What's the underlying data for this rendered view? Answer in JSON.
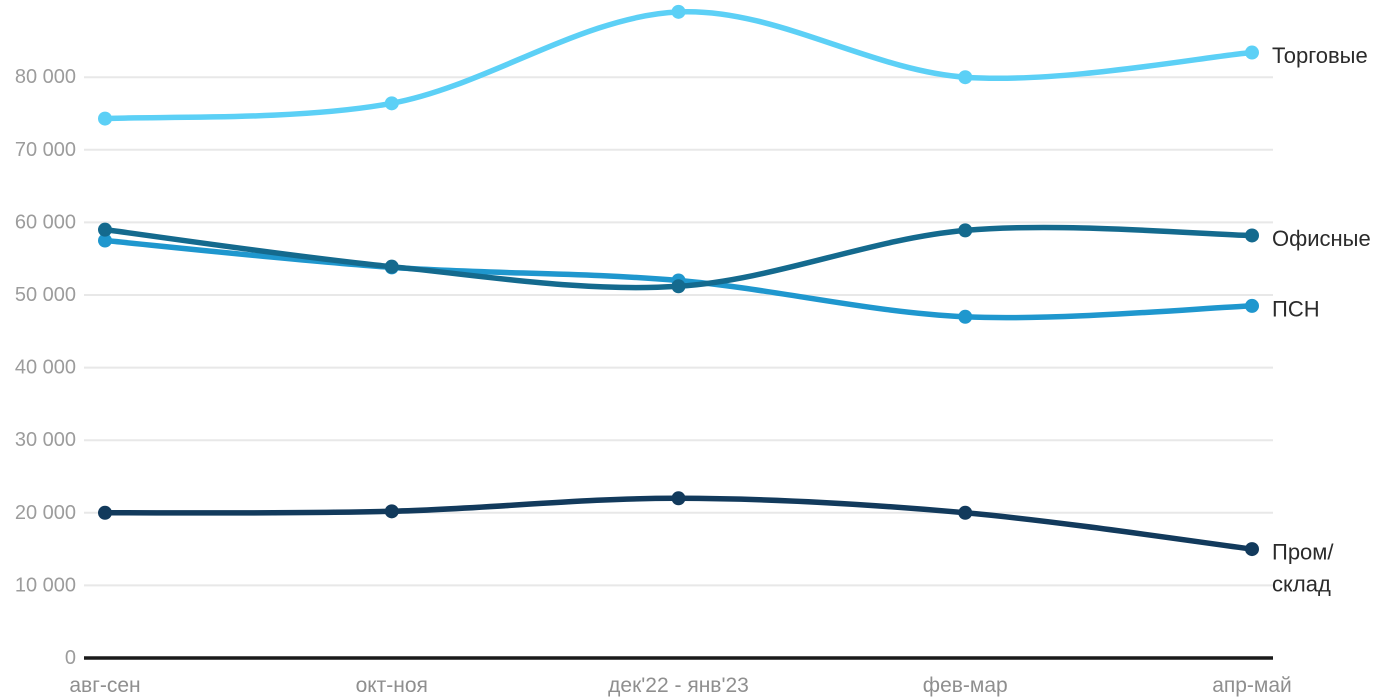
{
  "chart_data": {
    "type": "line",
    "title": "",
    "xlabel": "",
    "ylabel": "",
    "grid": "horizontal-only",
    "legend_position": "right-end-of-lines",
    "line_style": "smooth-spline-with-markers",
    "categories": [
      "авг-сен",
      "окт-ноя",
      "дек'22 - янв'23",
      "фев-мар",
      "апр-май"
    ],
    "ylim": [
      0,
      90000
    ],
    "y_ticks": [
      0,
      10000,
      20000,
      30000,
      40000,
      50000,
      60000,
      70000,
      80000
    ],
    "y_tick_labels": [
      "0",
      "10 000",
      "20 000",
      "30 000",
      "40 000",
      "50 000",
      "60 000",
      "70 000",
      "80 000"
    ],
    "series": [
      {
        "name": "Торговые",
        "label_lines": [
          "Торговые"
        ],
        "color": "#5CD0F6",
        "values": [
          74300,
          76400,
          89000,
          80000,
          83400
        ]
      },
      {
        "name": "ПСН",
        "label_lines": [
          "ПСН"
        ],
        "color": "#1F97CE",
        "values": [
          57500,
          53800,
          52000,
          47000,
          48500
        ]
      },
      {
        "name": "Офисные",
        "label_lines": [
          "Офисные"
        ],
        "color": "#146A8E",
        "values": [
          59000,
          53900,
          51200,
          58900,
          58200
        ]
      },
      {
        "name": "Пром/склад",
        "label_lines": [
          "Пром/",
          "склад"
        ],
        "color": "#123A5C",
        "values": [
          20000,
          20200,
          22000,
          20000,
          15000
        ]
      }
    ],
    "label_order_top_to_bottom": [
      "Торговые",
      "Офисные",
      "ПСН",
      "Пром/склад"
    ]
  },
  "colors": {
    "background": "#ffffff",
    "gridline": "#e8e8e8",
    "axis_line": "#1a1a1a",
    "y_tick_label": "#9c9c9c",
    "x_tick_label": "#8f8f8f",
    "series_label_text": "#2b2b2b"
  }
}
